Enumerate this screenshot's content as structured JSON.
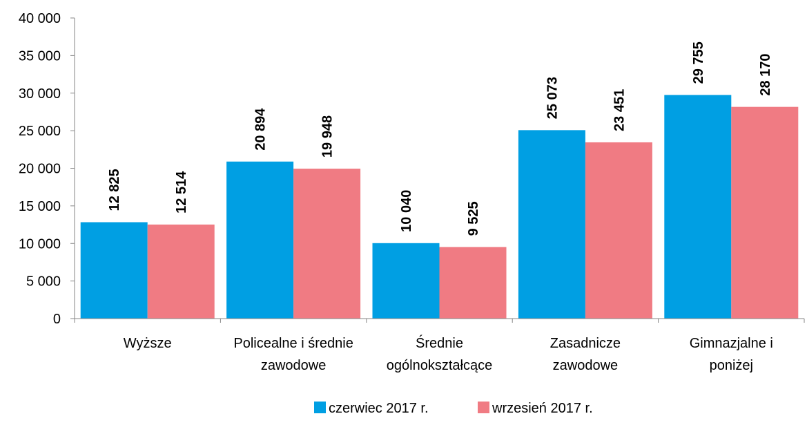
{
  "chart_data": {
    "type": "bar",
    "title": "",
    "xlabel": "",
    "ylabel": "",
    "ylim": [
      0,
      40000
    ],
    "y_ticks": [
      0,
      5000,
      10000,
      15000,
      20000,
      25000,
      30000,
      35000,
      40000
    ],
    "y_tick_labels": [
      "0",
      "5 000",
      "10 000",
      "15 000",
      "20 000",
      "25 000",
      "30 000",
      "35 000",
      "40 000"
    ],
    "grid": false,
    "legend_position": "bottom",
    "categories": [
      [
        "Wyższe"
      ],
      [
        "Policealne i średnie",
        "zawodowe"
      ],
      [
        "Średnie",
        "ogólnokształcące"
      ],
      [
        "Zasadnicze",
        "zawodowe"
      ],
      [
        "Gimnazjalne i",
        "poniżej"
      ]
    ],
    "series": [
      {
        "name": "czerwiec 2017 r.",
        "color": "#009FE3",
        "values": [
          12825,
          20894,
          10040,
          25073,
          29755
        ],
        "labels": [
          "12 825",
          "20 894",
          "10 040",
          "25 073",
          "29 755"
        ]
      },
      {
        "name": "wrzesień 2017 r.",
        "color": "#F07B83",
        "values": [
          12514,
          19948,
          9525,
          23451,
          28170
        ],
        "labels": [
          "12 514",
          "19 948",
          "9 525",
          "23 451",
          "28 170"
        ]
      }
    ]
  }
}
